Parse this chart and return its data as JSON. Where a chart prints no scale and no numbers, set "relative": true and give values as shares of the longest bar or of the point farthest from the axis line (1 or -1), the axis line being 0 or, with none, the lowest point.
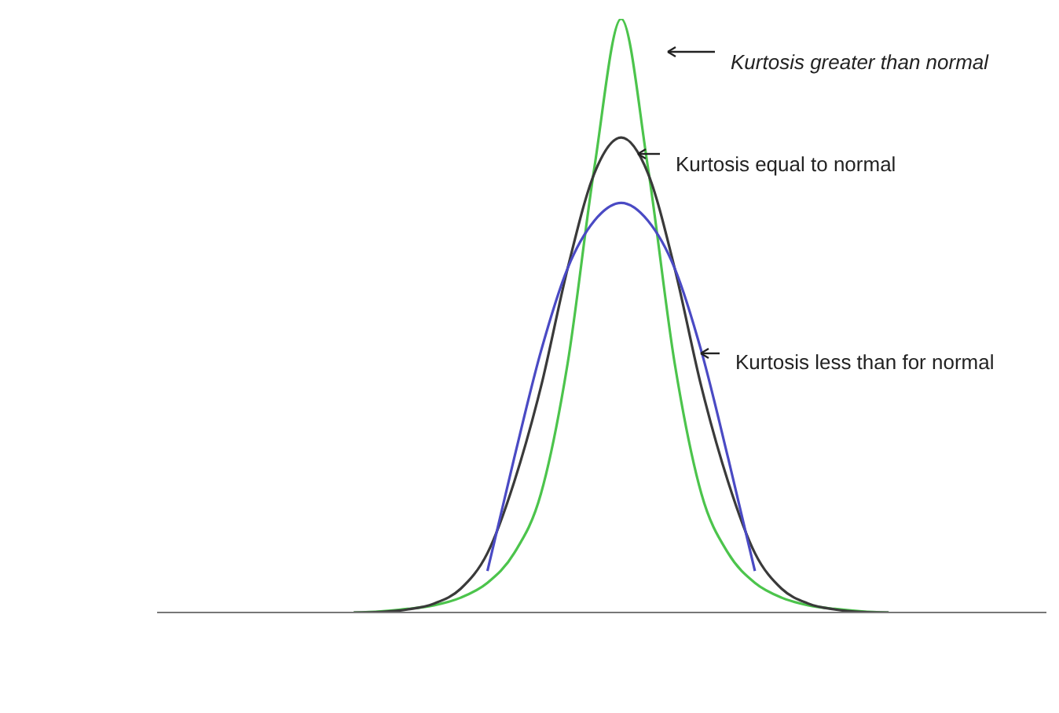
{
  "chart_data": {
    "type": "line",
    "relative": true,
    "categories": [
      null,
      null,
      null,
      null,
      null,
      null,
      null,
      null,
      null,
      null,
      null,
      null,
      null,
      null,
      null,
      null,
      null,
      null,
      null,
      null,
      null
    ],
    "series": [
      {
        "color": "#4cc44c",
        "values": [
          0,
          0.002,
          0.006,
          0.012,
          0.025,
          0.05,
          0.1,
          0.2,
          0.42,
          0.75,
          1,
          0.75,
          0.42,
          0.2,
          0.1,
          0.05,
          0.025,
          0.012,
          0.006,
          0.002,
          0
        ]
      },
      {
        "color": "#3a3a3a",
        "values": [
          0,
          0.001,
          0.005,
          0.015,
          0.04,
          0.1,
          0.22,
          0.38,
          0.58,
          0.74,
          0.8,
          0.74,
          0.58,
          0.38,
          0.22,
          0.1,
          0.04,
          0.015,
          0.005,
          0.001,
          0
        ]
      },
      {
        "color": "#4a4ac4",
        "values": [
          null,
          null,
          null,
          null,
          null,
          0.07,
          0.26,
          0.44,
          0.58,
          0.66,
          0.69,
          0.66,
          0.58,
          0.44,
          0.26,
          0.07,
          null,
          null,
          null,
          null,
          null
        ]
      }
    ],
    "annotations": [
      "Kurtosis greater than normal",
      "Kurtosis equal to normal",
      "Kurtosis less than for normal"
    ],
    "legend": false,
    "grid": false
  }
}
